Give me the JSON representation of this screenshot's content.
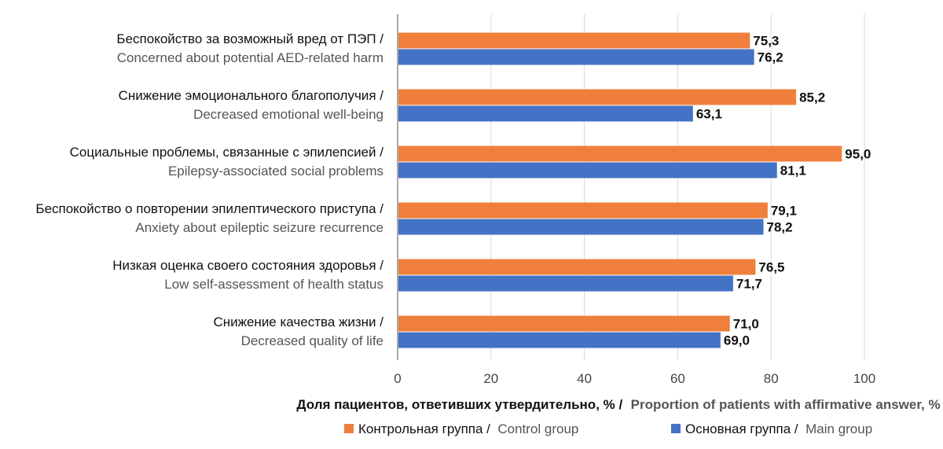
{
  "chart_data": {
    "type": "bar",
    "orientation": "horizontal",
    "categories": [
      {
        "ru": "Беспокойство за возможный вред от ПЭП /",
        "en": "Concerned about potential AED-related harm"
      },
      {
        "ru": "Снижение эмоционального благополучия /",
        "en": "Decreased emotional well-being"
      },
      {
        "ru": "Социальные проблемы, связанные с эпилепсией /",
        "en": "Epilepsy-associated social problems"
      },
      {
        "ru": "Беспокойство о повторении эпилептического приступа /",
        "en": "Anxiety about epileptic seizure recurrence"
      },
      {
        "ru": "Низкая оценка своего состояния здоровья /",
        "en": "Low self-assessment of health status"
      },
      {
        "ru": "Снижение качества жизни /",
        "en": "Decreased quality of life"
      }
    ],
    "series": [
      {
        "name_ru": "Контрольная группа /",
        "name_en": "Control group",
        "color": "#F07F3C",
        "values": [
          75.3,
          85.2,
          95.0,
          79.1,
          76.5,
          71.0
        ],
        "labels": [
          "75,3",
          "85,2",
          "95,0",
          "79,1",
          "76,5",
          "71,0"
        ]
      },
      {
        "name_ru": "Основная группа /",
        "name_en": "Main group",
        "color": "#4472C4",
        "values": [
          76.2,
          63.1,
          81.1,
          78.2,
          71.7,
          69.0
        ],
        "labels": [
          "76,2",
          "63,1",
          "81,1",
          "78,2",
          "71,7",
          "69,0"
        ]
      }
    ],
    "xlim": [
      0,
      100
    ],
    "xticks": [
      0,
      20,
      40,
      60,
      80,
      100
    ],
    "xlabel_ru": "Доля пациентов, ответивших утвердительно, % /",
    "xlabel_en": "Proportion of patients with affirmative answer, %",
    "grid": true,
    "legend_position": "bottom"
  },
  "colors": {
    "control": "#F07F3C",
    "main": "#4472C4",
    "grid": "#D9D9D9",
    "axis": "#555555"
  }
}
